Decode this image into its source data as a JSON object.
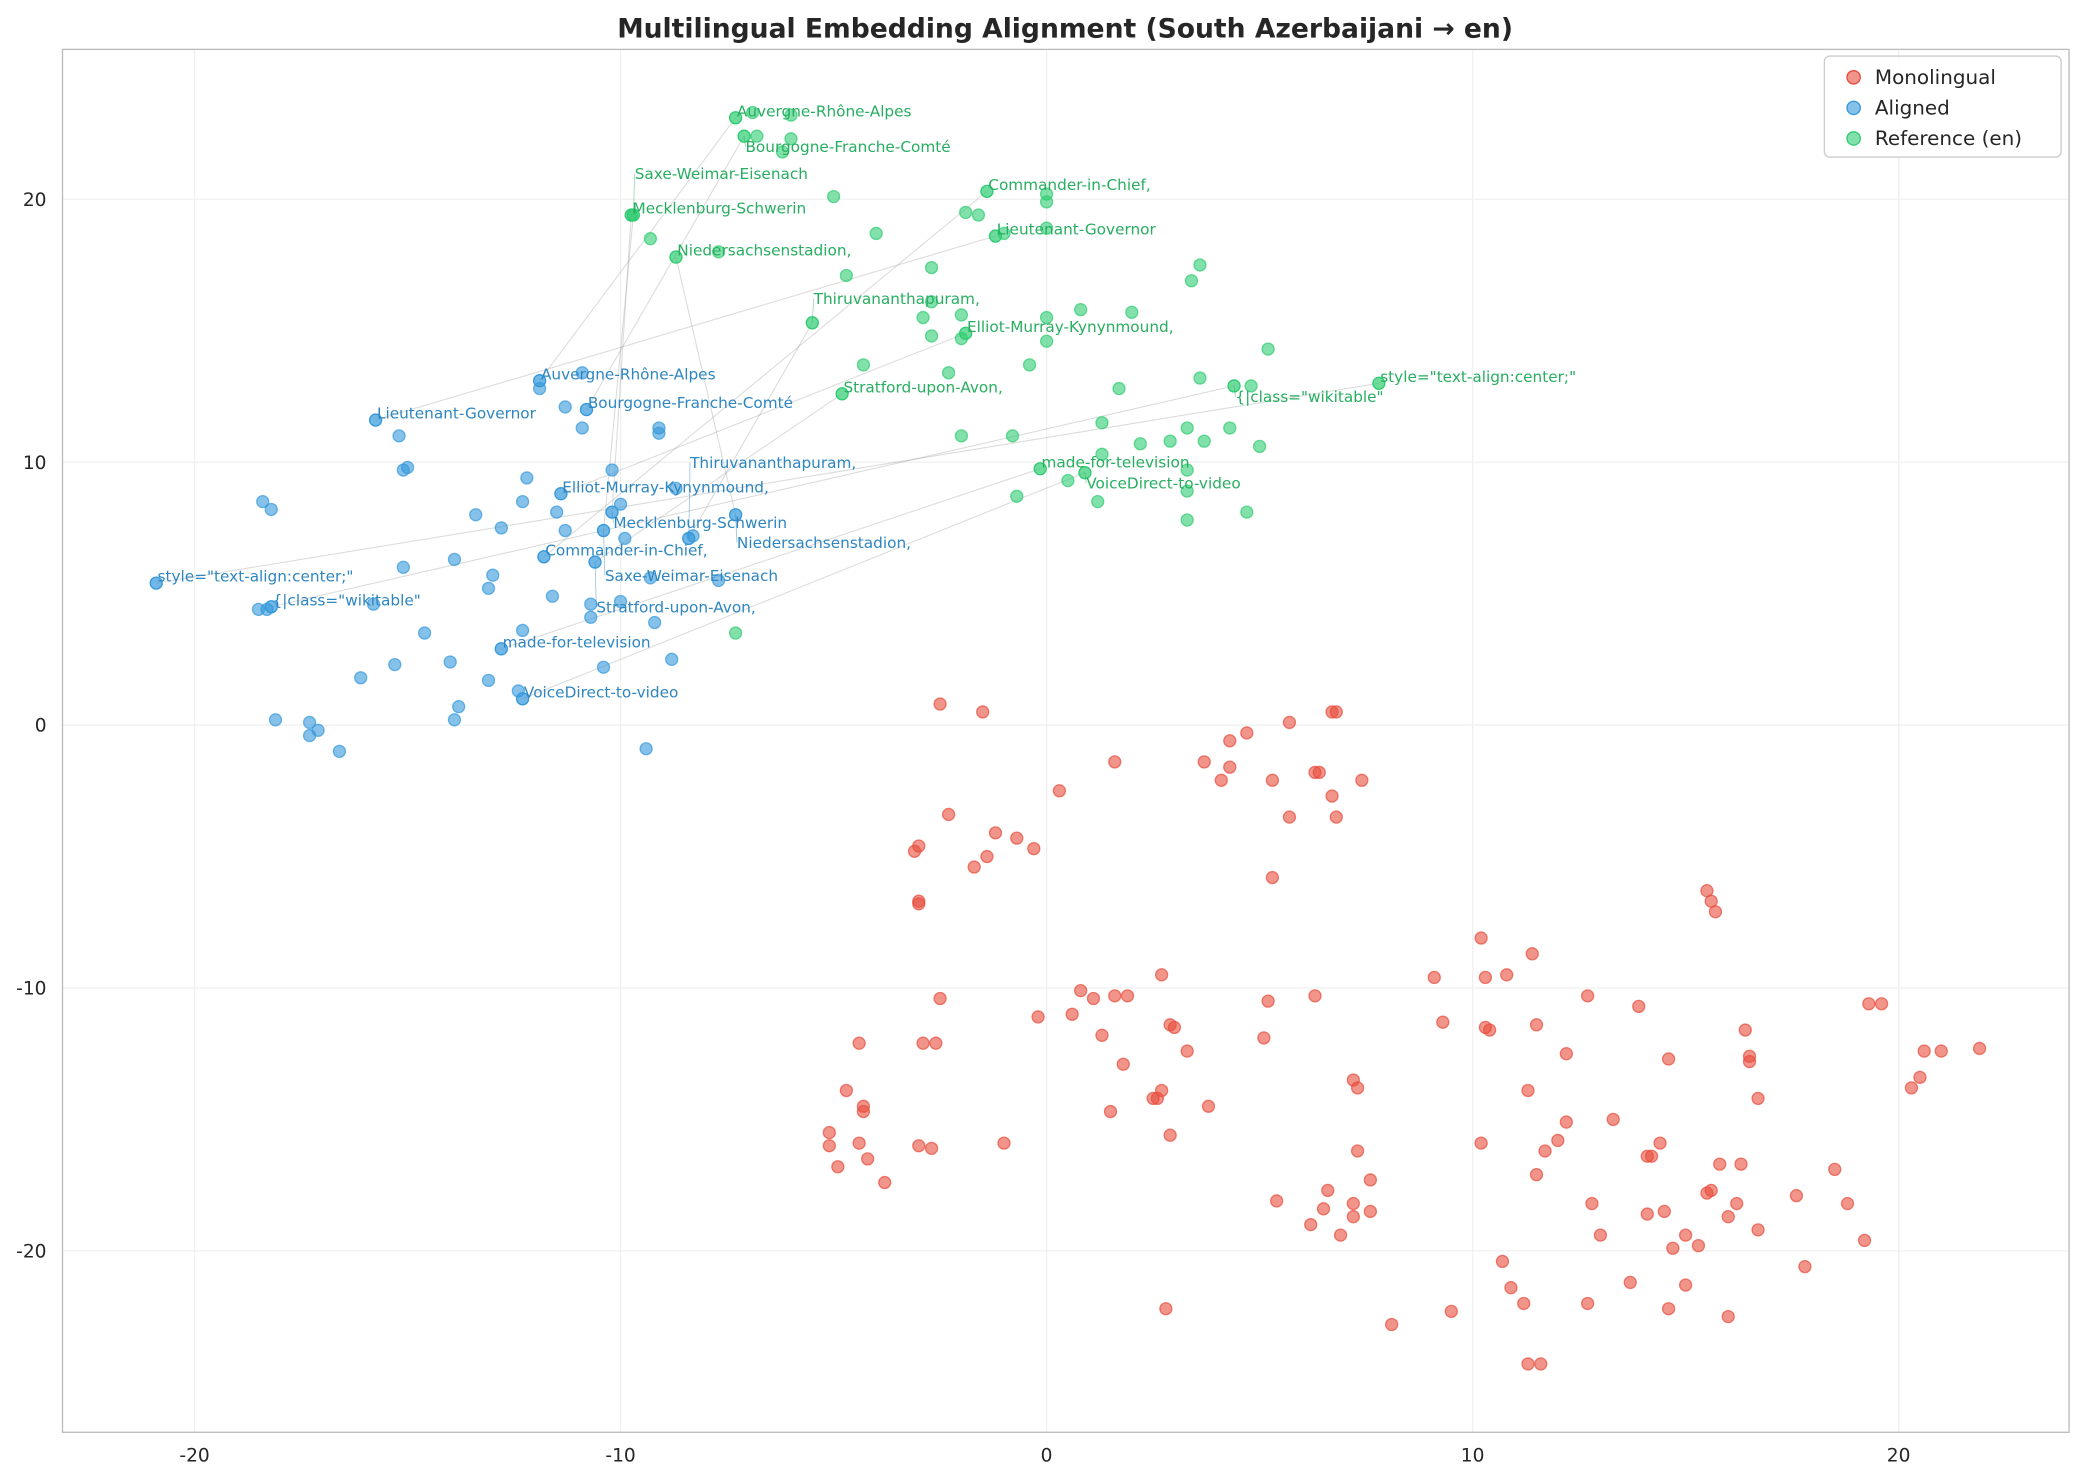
{
  "chart_data": {
    "type": "scatter",
    "title": "Multilingual Embedding Alignment (South Azerbaijani → en)",
    "xlabel": "",
    "ylabel": "",
    "xlim": [
      -23.1,
      24.0
    ],
    "ylim": [
      -26.9,
      25.7
    ],
    "xticks": [
      -20,
      -10,
      0,
      10,
      20
    ],
    "yticks": [
      -20,
      -10,
      0,
      10,
      20
    ],
    "grid": true,
    "legend_position": "top-right",
    "series": [
      {
        "name": "Monolingual",
        "color": "#e74c3c",
        "points": [
          [
            -2.5,
            0.8
          ],
          [
            -1.5,
            0.5
          ],
          [
            5.7,
            0.1
          ],
          [
            6.7,
            0.5
          ],
          [
            6.8,
            0.5
          ],
          [
            4.7,
            -0.3
          ],
          [
            4.3,
            -0.6
          ],
          [
            1.6,
            -1.4
          ],
          [
            3.7,
            -1.4
          ],
          [
            4.3,
            -1.6
          ],
          [
            4.1,
            -2.1
          ],
          [
            5.3,
            -2.1
          ],
          [
            6.3,
            -1.8
          ],
          [
            6.4,
            -1.8
          ],
          [
            7.4,
            -2.1
          ],
          [
            6.7,
            -2.7
          ],
          [
            6.8,
            -3.5
          ],
          [
            5.7,
            -3.5
          ],
          [
            0.3,
            -2.5
          ],
          [
            -2.3,
            -3.4
          ],
          [
            -1.2,
            -4.1
          ],
          [
            -0.7,
            -4.3
          ],
          [
            -1.4,
            -5.0
          ],
          [
            -0.3,
            -4.7
          ],
          [
            -1.7,
            -5.4
          ],
          [
            -3.1,
            -4.8
          ],
          [
            -3.0,
            -4.6
          ],
          [
            -3.0,
            -6.7
          ],
          [
            -3.0,
            -6.8
          ],
          [
            5.3,
            -5.8
          ],
          [
            15.5,
            -6.3
          ],
          [
            15.6,
            -6.7
          ],
          [
            15.7,
            -7.1
          ],
          [
            10.2,
            -8.1
          ],
          [
            11.4,
            -8.7
          ],
          [
            9.1,
            -9.6
          ],
          [
            10.3,
            -9.6
          ],
          [
            10.8,
            -9.5
          ],
          [
            12.7,
            -10.3
          ],
          [
            16.4,
            -11.6
          ],
          [
            16.5,
            -12.6
          ],
          [
            16.5,
            -12.8
          ],
          [
            14.6,
            -12.7
          ],
          [
            12.2,
            -12.5
          ],
          [
            13.9,
            -10.7
          ],
          [
            11.5,
            -11.4
          ],
          [
            10.3,
            -11.5
          ],
          [
            10.4,
            -11.6
          ],
          [
            9.3,
            -11.3
          ],
          [
            -2.5,
            -10.4
          ],
          [
            -4.4,
            -12.1
          ],
          [
            -2.9,
            -12.1
          ],
          [
            -2.6,
            -12.1
          ],
          [
            -0.2,
            -11.1
          ],
          [
            0.6,
            -11.0
          ],
          [
            0.8,
            -10.1
          ],
          [
            1.1,
            -10.4
          ],
          [
            1.6,
            -10.3
          ],
          [
            1.9,
            -10.3
          ],
          [
            2.7,
            -9.5
          ],
          [
            2.9,
            -11.4
          ],
          [
            3.0,
            -11.5
          ],
          [
            1.3,
            -11.8
          ],
          [
            1.8,
            -12.9
          ],
          [
            3.3,
            -12.4
          ],
          [
            5.2,
            -10.5
          ],
          [
            6.3,
            -10.3
          ],
          [
            5.1,
            -11.9
          ],
          [
            1.5,
            -14.7
          ],
          [
            2.7,
            -13.9
          ],
          [
            2.6,
            -14.2
          ],
          [
            2.5,
            -14.2
          ],
          [
            3.8,
            -14.5
          ],
          [
            2.9,
            -15.6
          ],
          [
            -1.0,
            -15.9
          ],
          [
            -4.7,
            -13.9
          ],
          [
            -4.3,
            -14.5
          ],
          [
            -4.3,
            -14.7
          ],
          [
            -5.1,
            -15.5
          ],
          [
            -5.1,
            -16.0
          ],
          [
            -4.4,
            -15.9
          ],
          [
            -4.2,
            -16.5
          ],
          [
            -4.9,
            -16.8
          ],
          [
            -3.8,
            -17.4
          ],
          [
            -3.0,
            -16.0
          ],
          [
            -2.7,
            -16.1
          ],
          [
            7.3,
            -16.2
          ],
          [
            7.6,
            -17.3
          ],
          [
            5.4,
            -18.1
          ],
          [
            6.6,
            -17.7
          ],
          [
            6.5,
            -18.4
          ],
          [
            7.2,
            -18.2
          ],
          [
            7.6,
            -18.5
          ],
          [
            7.2,
            -18.7
          ],
          [
            6.2,
            -19.0
          ],
          [
            6.9,
            -19.4
          ],
          [
            10.2,
            -15.9
          ],
          [
            11.7,
            -16.2
          ],
          [
            12.0,
            -15.8
          ],
          [
            11.5,
            -17.1
          ],
          [
            11.3,
            -13.9
          ],
          [
            12.2,
            -15.1
          ],
          [
            13.3,
            -15.0
          ],
          [
            14.1,
            -16.4
          ],
          [
            14.2,
            -16.4
          ],
          [
            14.4,
            -15.9
          ],
          [
            15.8,
            -16.7
          ],
          [
            16.3,
            -16.7
          ],
          [
            15.5,
            -17.8
          ],
          [
            15.6,
            -17.7
          ],
          [
            12.8,
            -18.2
          ],
          [
            13.0,
            -19.4
          ],
          [
            14.1,
            -18.6
          ],
          [
            14.5,
            -18.5
          ],
          [
            14.7,
            -19.9
          ],
          [
            15.0,
            -19.4
          ],
          [
            15.3,
            -19.8
          ],
          [
            16.0,
            -18.7
          ],
          [
            16.2,
            -18.2
          ],
          [
            16.7,
            -19.2
          ],
          [
            17.6,
            -17.9
          ],
          [
            18.5,
            -16.9
          ],
          [
            18.8,
            -18.2
          ],
          [
            19.2,
            -19.6
          ],
          [
            17.8,
            -20.6
          ],
          [
            15.0,
            -21.3
          ],
          [
            13.7,
            -21.2
          ],
          [
            10.7,
            -20.4
          ],
          [
            10.9,
            -21.4
          ],
          [
            11.2,
            -22.0
          ],
          [
            12.7,
            -22.0
          ],
          [
            14.6,
            -22.2
          ],
          [
            16.0,
            -22.5
          ],
          [
            8.1,
            -22.8
          ],
          [
            9.5,
            -22.3
          ],
          [
            2.8,
            -22.2
          ],
          [
            11.3,
            -24.3
          ],
          [
            11.6,
            -24.3
          ],
          [
            19.3,
            -10.6
          ],
          [
            19.6,
            -10.6
          ],
          [
            20.6,
            -12.4
          ],
          [
            21.0,
            -12.4
          ],
          [
            21.9,
            -12.3
          ],
          [
            20.5,
            -13.4
          ],
          [
            20.3,
            -13.8
          ],
          [
            16.7,
            -14.2
          ],
          [
            7.2,
            -13.5
          ],
          [
            7.3,
            -13.8
          ]
        ]
      },
      {
        "name": "Aligned",
        "color": "#3498db",
        "points": [
          [
            -18.5,
            4.4
          ],
          [
            -18.3,
            4.4
          ],
          [
            -18.2,
            8.2
          ],
          [
            -18.4,
            8.5
          ],
          [
            -15.2,
            11.0
          ],
          [
            -15.1,
            9.7
          ],
          [
            -15.0,
            9.8
          ],
          [
            -13.4,
            8.0
          ],
          [
            -12.8,
            7.5
          ],
          [
            -12.3,
            8.5
          ],
          [
            -12.2,
            9.4
          ],
          [
            -11.5,
            8.1
          ],
          [
            -11.3,
            7.4
          ],
          [
            -11.3,
            12.1
          ],
          [
            -10.9,
            13.4
          ],
          [
            -10.9,
            11.3
          ],
          [
            -10.2,
            9.7
          ],
          [
            -10.0,
            8.4
          ],
          [
            -9.9,
            7.1
          ],
          [
            -9.1,
            11.3
          ],
          [
            -9.1,
            11.1
          ],
          [
            -8.7,
            9.0
          ],
          [
            -9.3,
            5.6
          ],
          [
            -10.0,
            4.7
          ],
          [
            -10.7,
            4.6
          ],
          [
            -11.6,
            4.9
          ],
          [
            -12.3,
            3.6
          ],
          [
            -13.1,
            5.2
          ],
          [
            -13.0,
            5.7
          ],
          [
            -13.9,
            6.3
          ],
          [
            -15.1,
            6.0
          ],
          [
            -15.8,
            4.6
          ],
          [
            -14.6,
            3.5
          ],
          [
            -15.3,
            2.3
          ],
          [
            -16.1,
            1.8
          ],
          [
            -14.0,
            2.4
          ],
          [
            -13.1,
            1.7
          ],
          [
            -13.8,
            0.7
          ],
          [
            -13.9,
            0.2
          ],
          [
            -12.4,
            1.3
          ],
          [
            -10.4,
            2.2
          ],
          [
            -9.2,
            3.9
          ],
          [
            -8.8,
            2.5
          ],
          [
            -7.7,
            5.5
          ],
          [
            -8.3,
            7.2
          ],
          [
            -9.4,
            -0.9
          ],
          [
            -18.1,
            0.2
          ],
          [
            -17.3,
            0.1
          ],
          [
            -17.1,
            -0.2
          ],
          [
            -17.3,
            -0.4
          ],
          [
            -16.6,
            -1.0
          ],
          [
            -10.7,
            4.1
          ],
          [
            -11.9,
            12.8
          ]
        ]
      },
      {
        "name": "Reference (en)",
        "color": "#2ecc71",
        "points": [
          [
            -6.9,
            23.3
          ],
          [
            -6.0,
            23.2
          ],
          [
            -6.8,
            22.4
          ],
          [
            -6.0,
            22.3
          ],
          [
            -6.2,
            21.8
          ],
          [
            -5.0,
            20.1
          ],
          [
            -9.3,
            18.5
          ],
          [
            -7.7,
            18.0
          ],
          [
            -4.7,
            17.1
          ],
          [
            -4.0,
            18.7
          ],
          [
            -2.7,
            17.4
          ],
          [
            -2.7,
            16.1
          ],
          [
            -1.9,
            19.5
          ],
          [
            -1.6,
            19.4
          ],
          [
            0.0,
            19.9
          ],
          [
            0.0,
            20.2
          ],
          [
            0.0,
            18.9
          ],
          [
            -1.0,
            18.7
          ],
          [
            3.6,
            17.5
          ],
          [
            3.4,
            16.9
          ],
          [
            2.0,
            15.7
          ],
          [
            0.8,
            15.8
          ],
          [
            0.0,
            15.5
          ],
          [
            0.0,
            14.6
          ],
          [
            -2.9,
            15.5
          ],
          [
            -2.7,
            14.8
          ],
          [
            -2.0,
            15.6
          ],
          [
            -2.0,
            14.7
          ],
          [
            -2.3,
            13.4
          ],
          [
            -4.3,
            13.7
          ],
          [
            -0.4,
            13.7
          ],
          [
            1.7,
            12.8
          ],
          [
            3.6,
            13.2
          ],
          [
            4.8,
            12.9
          ],
          [
            5.2,
            14.3
          ],
          [
            1.3,
            11.5
          ],
          [
            2.2,
            10.7
          ],
          [
            2.9,
            10.8
          ],
          [
            3.3,
            11.3
          ],
          [
            4.3,
            11.3
          ],
          [
            3.7,
            10.8
          ],
          [
            5.0,
            10.6
          ],
          [
            -2.0,
            11.0
          ],
          [
            -0.8,
            11.0
          ],
          [
            1.3,
            10.3
          ],
          [
            0.5,
            9.3
          ],
          [
            3.3,
            9.7
          ],
          [
            3.3,
            8.9
          ],
          [
            -0.7,
            8.7
          ],
          [
            1.2,
            8.5
          ],
          [
            4.7,
            8.1
          ],
          [
            3.3,
            7.8
          ],
          [
            -7.3,
            3.5
          ]
        ]
      }
    ],
    "labeled_pairs": [
      {
        "label": "Auvergne-Rhône-Alpes",
        "aligned": [
          -11.9,
          13.1
        ],
        "reference": [
          -7.3,
          23.1
        ]
      },
      {
        "label": "Bourgogne-Franche-Comté",
        "aligned": [
          -10.8,
          12.0
        ],
        "reference": [
          -7.1,
          22.4
        ]
      },
      {
        "label": "Lieutenant-Governor",
        "aligned": [
          -15.75,
          11.6
        ],
        "reference": [
          -1.2,
          18.6
        ]
      },
      {
        "label": "Elliot-Murray-Kynynmound,",
        "aligned": [
          -11.4,
          8.8
        ],
        "reference": [
          -1.9,
          14.9
        ]
      },
      {
        "label": "Mecklenburg-Schwerin",
        "aligned": [
          -10.2,
          8.1
        ],
        "reference": [
          -9.75,
          19.4
        ]
      },
      {
        "label": "Niedersachsenstadion,",
        "aligned": [
          -7.3,
          8.0
        ],
        "reference": [
          -8.7,
          17.8
        ]
      },
      {
        "label": "Saxe-Weimar-Eisenach",
        "aligned": [
          -10.4,
          7.4
        ],
        "reference": [
          -9.7,
          19.4
        ]
      },
      {
        "label": "Thiruvananthapuram,",
        "aligned": [
          -8.4,
          7.1
        ],
        "reference": [
          -5.5,
          15.3
        ]
      },
      {
        "label": "Commander-in-Chief,",
        "aligned": [
          -11.8,
          6.4
        ],
        "reference": [
          -1.4,
          20.3
        ]
      },
      {
        "label": "Stratford-upon-Avon,",
        "aligned": [
          -10.6,
          6.2
        ],
        "reference": [
          -4.8,
          12.6
        ]
      },
      {
        "label": "style=\"text-align:center;\"",
        "aligned": [
          -20.9,
          5.4
        ],
        "reference": [
          7.8,
          13.0
        ]
      },
      {
        "label": "{|class=\"wikitable\"",
        "aligned": [
          -18.2,
          4.5
        ],
        "reference": [
          4.4,
          12.9
        ]
      },
      {
        "label": "made-for-television",
        "aligned": [
          -12.8,
          2.9
        ],
        "reference": [
          -0.15,
          9.75
        ]
      },
      {
        "label": "VoiceDirect-to-video",
        "aligned": [
          -12.3,
          1.0
        ],
        "reference": [
          0.9,
          9.6
        ]
      }
    ],
    "aligned_label_color": "#2e86c1",
    "reference_label_color": "#27ae60"
  }
}
